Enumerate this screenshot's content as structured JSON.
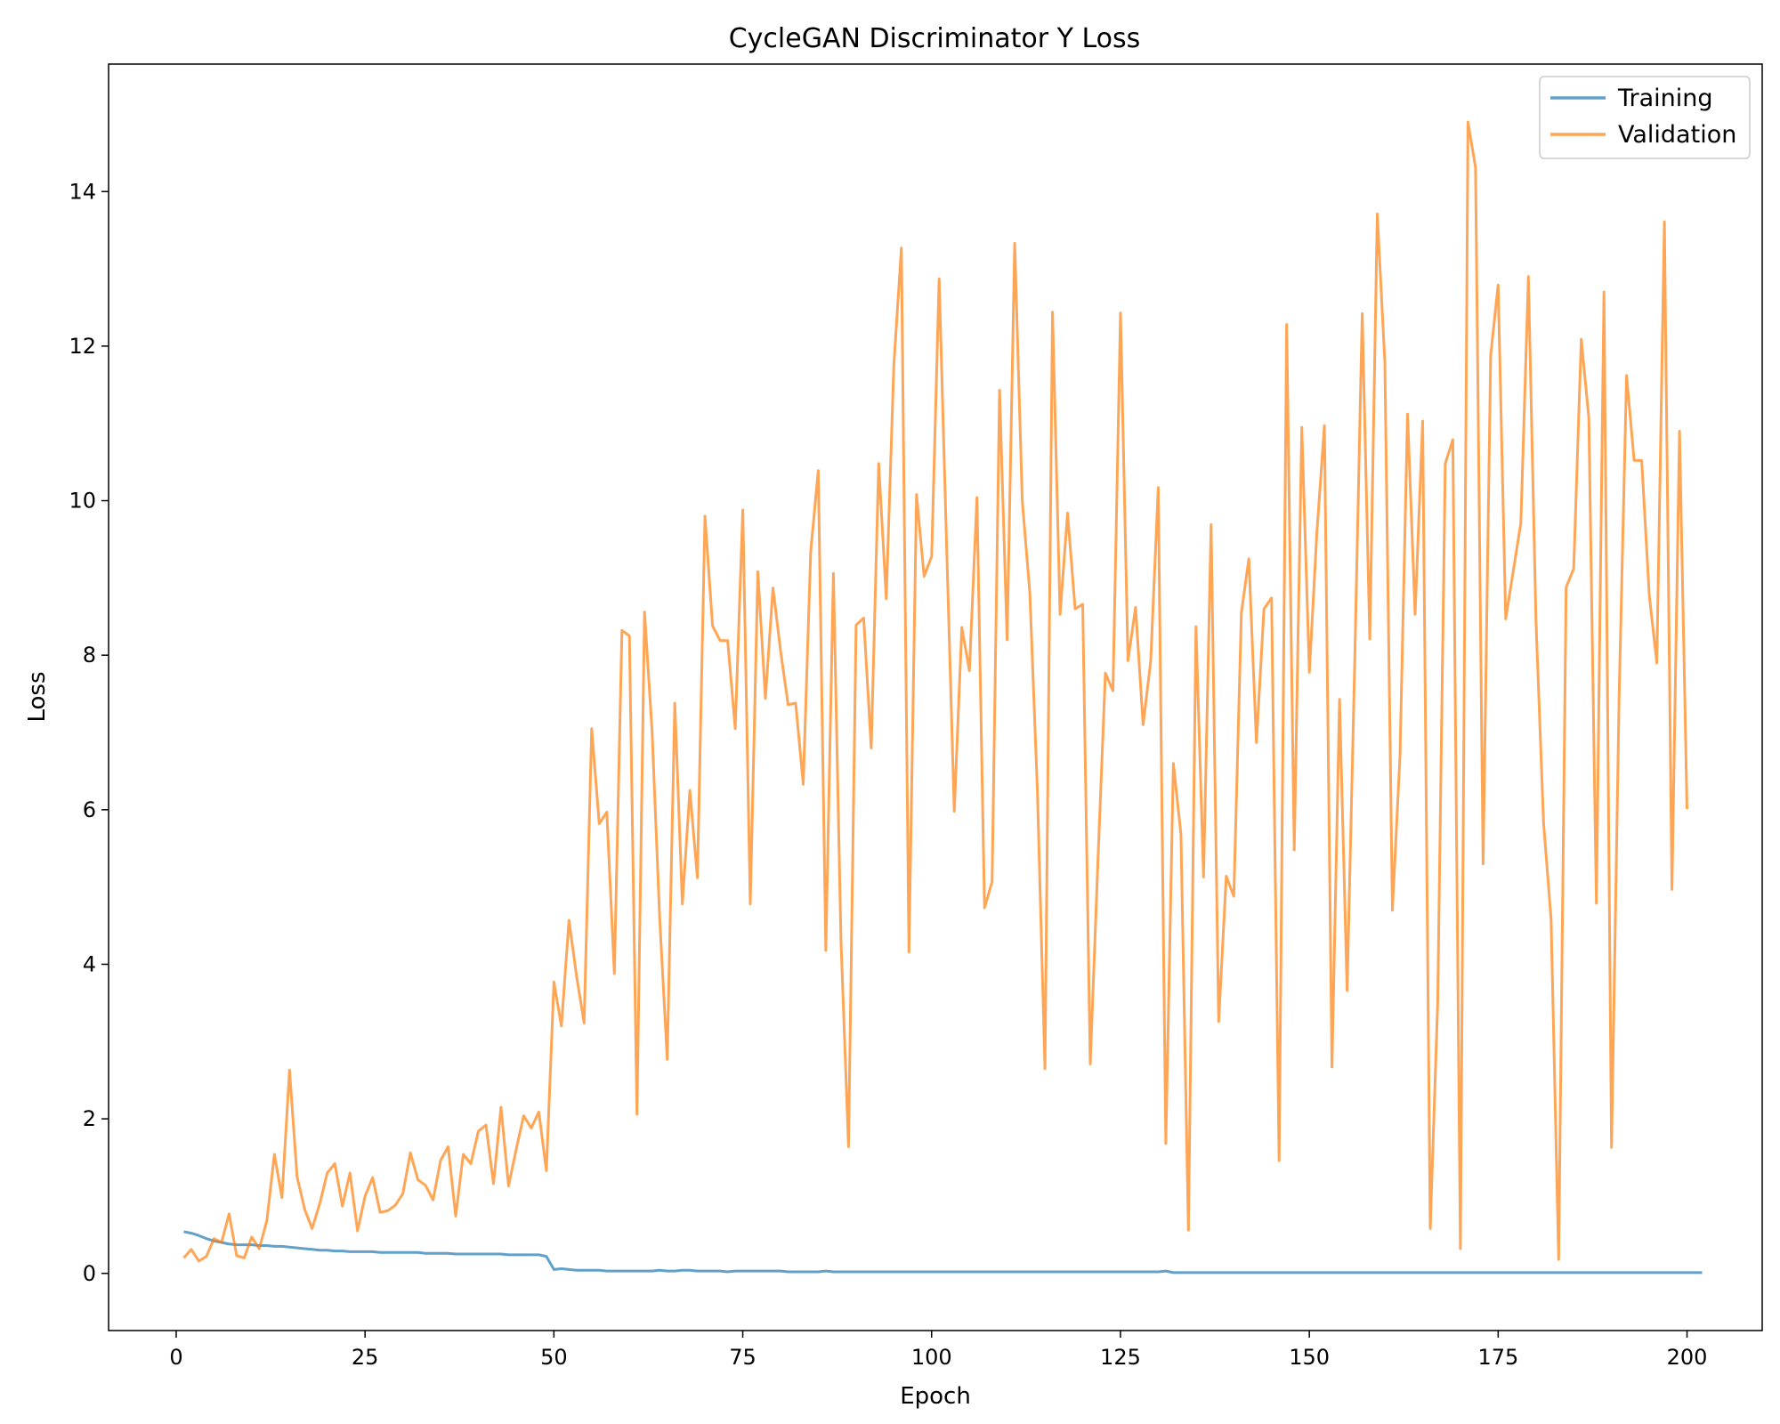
{
  "chart_data": {
    "type": "line",
    "title": "CycleGAN Discriminator Y Loss",
    "xlabel": "Epoch",
    "ylabel": "Loss",
    "xlim": [
      -8.95,
      209.95
    ],
    "ylim": [
      -0.74,
      15.65
    ],
    "xticks": [
      0,
      25,
      50,
      75,
      100,
      125,
      150,
      175,
      200
    ],
    "yticks": [
      0,
      2,
      4,
      6,
      8,
      10,
      12,
      14
    ],
    "grid": false,
    "legend_position": "top-right",
    "x_start": 1,
    "series": [
      {
        "name": "Training",
        "color": "#1f77b4",
        "alpha": 0.7,
        "values": [
          0.54,
          0.52,
          0.49,
          0.45,
          0.42,
          0.4,
          0.38,
          0.37,
          0.37,
          0.37,
          0.36,
          0.36,
          0.35,
          0.35,
          0.34,
          0.33,
          0.32,
          0.31,
          0.3,
          0.3,
          0.29,
          0.29,
          0.28,
          0.28,
          0.28,
          0.28,
          0.27,
          0.27,
          0.27,
          0.27,
          0.27,
          0.27,
          0.26,
          0.26,
          0.26,
          0.26,
          0.25,
          0.25,
          0.25,
          0.25,
          0.25,
          0.25,
          0.25,
          0.24,
          0.24,
          0.24,
          0.24,
          0.24,
          0.22,
          0.05,
          0.06,
          0.05,
          0.04,
          0.04,
          0.04,
          0.04,
          0.03,
          0.03,
          0.03,
          0.03,
          0.03,
          0.03,
          0.03,
          0.04,
          0.03,
          0.03,
          0.04,
          0.04,
          0.03,
          0.03,
          0.03,
          0.03,
          0.02,
          0.03,
          0.03,
          0.03,
          0.03,
          0.03,
          0.03,
          0.03,
          0.02,
          0.02,
          0.02,
          0.02,
          0.02,
          0.03,
          0.02,
          0.02,
          0.02,
          0.02,
          0.02,
          0.02,
          0.02,
          0.02,
          0.02,
          0.02,
          0.02,
          0.02,
          0.02,
          0.02,
          0.02,
          0.02,
          0.02,
          0.02,
          0.02,
          0.02,
          0.02,
          0.02,
          0.02,
          0.02,
          0.02,
          0.02,
          0.02,
          0.02,
          0.02,
          0.02,
          0.02,
          0.02,
          0.02,
          0.02,
          0.02,
          0.02,
          0.02,
          0.02,
          0.02,
          0.02,
          0.02,
          0.02,
          0.02,
          0.02,
          0.03,
          0.01,
          0.01,
          0.01,
          0.01,
          0.01,
          0.01,
          0.01,
          0.01,
          0.01,
          0.01,
          0.01,
          0.01,
          0.01,
          0.01,
          0.01,
          0.01,
          0.01,
          0.01,
          0.01,
          0.01,
          0.01,
          0.01,
          0.01,
          0.01,
          0.01,
          0.01,
          0.01,
          0.01,
          0.01,
          0.01,
          0.01,
          0.01,
          0.01,
          0.01,
          0.01,
          0.01,
          0.01,
          0.01,
          0.01,
          0.01,
          0.01,
          0.01,
          0.01,
          0.01,
          0.01,
          0.01,
          0.01,
          0.01,
          0.01,
          0.01,
          0.01,
          0.01,
          0.01,
          0.01,
          0.01,
          0.01,
          0.01,
          0.01,
          0.01,
          0.01,
          0.01,
          0.01,
          0.01,
          0.01,
          0.01,
          0.01,
          0.01,
          0.01,
          0.01,
          0.01,
          0.01
        ]
      },
      {
        "name": "Validation",
        "color": "#ff7f0e",
        "alpha": 0.7,
        "values": [
          0.2,
          0.31,
          0.16,
          0.22,
          0.45,
          0.4,
          0.77,
          0.23,
          0.2,
          0.47,
          0.32,
          0.68,
          1.54,
          0.98,
          2.63,
          1.25,
          0.83,
          0.58,
          0.9,
          1.3,
          1.42,
          0.87,
          1.3,
          0.55,
          1.0,
          1.24,
          0.79,
          0.81,
          0.88,
          1.03,
          1.56,
          1.21,
          1.14,
          0.95,
          1.46,
          1.64,
          0.74,
          1.54,
          1.42,
          1.84,
          1.92,
          1.16,
          2.15,
          1.13,
          1.6,
          2.04,
          1.88,
          2.09,
          1.33,
          3.77,
          3.2,
          4.57,
          3.85,
          3.24,
          7.05,
          5.82,
          5.97,
          3.88,
          8.32,
          8.25,
          2.06,
          8.56,
          7.01,
          4.6,
          2.77,
          7.38,
          4.78,
          6.25,
          5.12,
          9.8,
          8.38,
          8.19,
          8.19,
          7.05,
          9.88,
          4.78,
          9.08,
          7.44,
          8.87,
          8.06,
          7.36,
          7.38,
          6.33,
          9.34,
          10.39,
          4.18,
          9.06,
          4.31,
          1.64,
          8.39,
          8.48,
          6.8,
          10.48,
          8.73,
          11.75,
          13.27,
          4.16,
          10.08,
          9.02,
          9.28,
          12.87,
          9.38,
          5.98,
          8.36,
          7.8,
          10.04,
          4.73,
          5.07,
          11.43,
          8.2,
          13.33,
          10.0,
          8.81,
          6.25,
          2.65,
          12.44,
          8.53,
          9.84,
          8.6,
          8.66,
          2.71,
          5.3,
          7.77,
          7.54,
          12.43,
          7.93,
          8.62,
          7.1,
          7.92,
          10.17,
          1.68,
          6.6,
          5.68,
          0.56,
          8.37,
          5.13,
          9.69,
          3.26,
          5.14,
          4.88,
          8.55,
          9.25,
          6.87,
          8.6,
          8.74,
          1.46,
          12.28,
          5.48,
          10.95,
          7.78,
          9.58,
          10.97,
          2.67,
          7.43,
          3.66,
          7.88,
          12.42,
          8.21,
          13.71,
          11.79,
          4.7,
          6.69,
          11.12,
          8.53,
          11.03,
          0.58,
          3.51,
          10.48,
          10.79,
          0.32,
          14.9,
          14.31,
          5.3,
          11.88,
          12.79,
          8.47,
          9.09,
          9.71,
          12.9,
          8.45,
          5.84,
          4.58,
          0.18,
          8.88,
          9.12,
          12.09,
          11.07,
          4.79,
          12.7,
          1.63,
          7.45,
          11.62,
          10.52,
          10.52,
          8.78,
          7.9,
          13.61,
          4.97,
          10.9,
          6.01
        ]
      }
    ]
  }
}
